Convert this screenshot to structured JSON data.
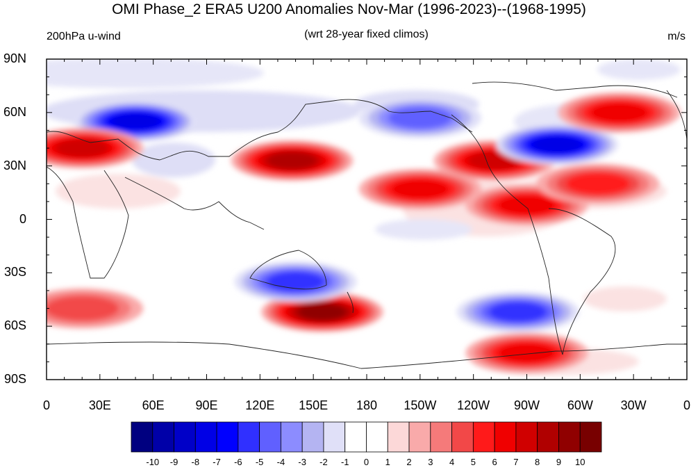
{
  "title": "OMI Phase_2 ERA5 U200 Anomalies Nov-Mar (1996-2023)--(1968-1995)",
  "left_subtitle": "200hPa u-wind",
  "center_subtitle": "(wrt 28-year fixed climos)",
  "units": "m/s",
  "y_ticks": [
    "90N",
    "60N",
    "30N",
    "0",
    "30S",
    "60S",
    "90S"
  ],
  "x_ticks": [
    "0",
    "30E",
    "60E",
    "90E",
    "120E",
    "150E",
    "180",
    "150W",
    "120W",
    "90W",
    "60W",
    "30W",
    "0"
  ],
  "colorbar": {
    "labels": [
      "-10",
      "-9",
      "-8",
      "-7",
      "-6",
      "-5",
      "-4",
      "-3",
      "-2",
      "-1",
      "0",
      "1",
      "2",
      "3",
      "4",
      "5",
      "6",
      "7",
      "8",
      "9",
      "10"
    ],
    "colors": [
      "#000080",
      "#0000a8",
      "#0000c8",
      "#0000e6",
      "#0000ff",
      "#3030ff",
      "#6060ff",
      "#8c8cff",
      "#b4b4f2",
      "#e0e0f8",
      "#ffffff",
      "#ffffff",
      "#fcd8d8",
      "#f9aaaa",
      "#f57a7a",
      "#f24848",
      "#ff1a1a",
      "#f00000",
      "#d00000",
      "#b00000",
      "#900000",
      "#780000"
    ]
  },
  "anomaly_features": [
    {
      "lon": 50,
      "lat": 55,
      "value": -7
    },
    {
      "lon": 20,
      "lat": 40,
      "value": 6
    },
    {
      "lon": 138,
      "lat": 33,
      "value": 7
    },
    {
      "lon": 155,
      "lat": -52,
      "value": 8
    },
    {
      "lon": 140,
      "lat": -35,
      "value": -5
    },
    {
      "lon": 210,
      "lat": 17,
      "value": 5
    },
    {
      "lon": 252,
      "lat": 33,
      "value": 6
    },
    {
      "lon": 287,
      "lat": 42,
      "value": -7
    },
    {
      "lon": 270,
      "lat": 8,
      "value": 5
    },
    {
      "lon": 310,
      "lat": 20,
      "value": 4
    },
    {
      "lon": 265,
      "lat": -52,
      "value": -5
    },
    {
      "lon": 270,
      "lat": -75,
      "value": 5
    },
    {
      "lon": 322,
      "lat": 60,
      "value": 5
    },
    {
      "lon": 210,
      "lat": 57,
      "value": -4
    },
    {
      "lon": 20,
      "lat": -50,
      "value": 3
    }
  ]
}
